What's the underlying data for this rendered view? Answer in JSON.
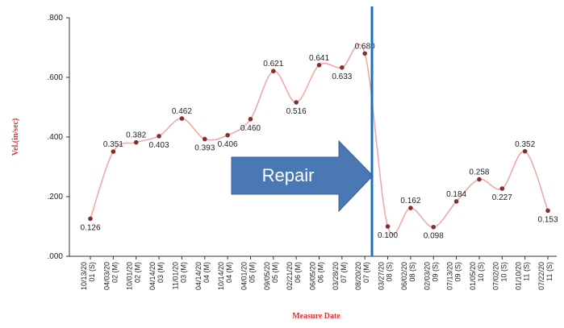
{
  "chart_data": {
    "type": "line",
    "y_label": "Vel.(in/sec)",
    "x_label": "Measure Date",
    "categories": [
      [
        "10/13/20",
        "01 (S)"
      ],
      [
        "04/03/20",
        "02 (M)"
      ],
      [
        "10/01/20",
        "02 (M)"
      ],
      [
        "04/14/20",
        "03 (M)"
      ],
      [
        "11/01/20",
        "03 (M)"
      ],
      [
        "04/14/20",
        "04 (M)"
      ],
      [
        "10/14/20",
        "04 (M)"
      ],
      [
        "04/01/20",
        "05 (M)"
      ],
      [
        "09/05/20",
        "05 (M)"
      ],
      [
        "02/21/20",
        "06 (M)"
      ],
      [
        "06/05/20",
        "06 (M)"
      ],
      [
        "03/28/20",
        "07 (M)"
      ],
      [
        "08/20/20",
        "07 (M)"
      ],
      [
        "03/27/20",
        "08 (S)"
      ],
      [
        "06/02/20",
        "08 (S)"
      ],
      [
        "02/03/20",
        "09 (S)"
      ],
      [
        "07/13/20",
        "09 (S)"
      ],
      [
        "01/05/20",
        "10 (S)"
      ],
      [
        "07/02/20",
        "10 (S)"
      ],
      [
        "01/10/20",
        "11 (S)"
      ],
      [
        "07/22/20",
        "11 (S)"
      ]
    ],
    "values": [
      0.126,
      0.351,
      0.382,
      0.403,
      0.462,
      0.393,
      0.406,
      0.46,
      0.621,
      0.516,
      0.641,
      0.633,
      0.68,
      0.1,
      0.162,
      0.098,
      0.184,
      0.258,
      0.227,
      0.352,
      0.153
    ],
    "value_labels": [
      "0.126",
      "0.351",
      "0.382",
      "0.403",
      "0.462",
      "0.393",
      "0.406",
      "0.460",
      "0.621",
      "0.516",
      "0.641",
      "0.633",
      "0.680",
      "0.100",
      "0.162",
      "0.098",
      "0.184",
      "0.258",
      "0.227",
      "0.352",
      "0.153"
    ],
    "line_color": "#f4a3a3",
    "marker_color": "#8b2c2c",
    "ylim": [
      0,
      0.8
    ],
    "yticks": [
      {
        "value": 0,
        "label": ".000"
      },
      {
        "value": 0.2,
        "label": ".200"
      },
      {
        "value": 0.4,
        "label": ".400"
      },
      {
        "value": 0.6,
        "label": ".600"
      },
      {
        "value": 0.8,
        "label": ".800"
      }
    ],
    "annotation": "Repair"
  }
}
